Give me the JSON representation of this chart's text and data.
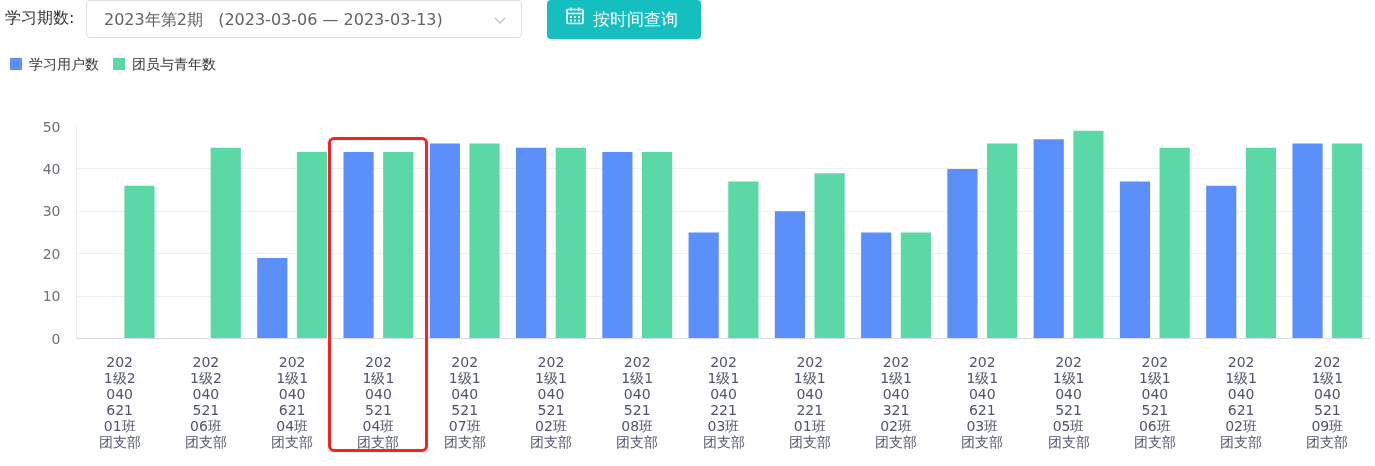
{
  "chart_data": {
    "type": "bar",
    "annotations": [
      "学习期数:",
      "2023年第2期   (2023-03-06 — 2023-03-13)",
      "按时间查询"
    ],
    "categories": [
      "2021级204062101班团支部",
      "2021级204052106班团支部",
      "2021级104062104班团支部",
      "2021级104052104班团支部",
      "2021级104052107班团支部",
      "2021级104052102班团支部",
      "2021级104052108班团支部",
      "2021级104022103班团支部",
      "2021级104022101班团支部",
      "2021级104032102班团支部",
      "2021级104062103班团支部",
      "2021级104052105班团支部",
      "2021级104052106班团支部",
      "2021级104062102班团支部",
      "2021级104052109班团支部"
    ],
    "series": [
      {
        "name": "学习用户数",
        "color": "#5b8ff9",
        "values": [
          null,
          null,
          19,
          44,
          46,
          45,
          44,
          25,
          30,
          25,
          40,
          47,
          37,
          36,
          46
        ]
      },
      {
        "name": "团员与青年数",
        "color": "#5ad8a6",
        "values": [
          36,
          45,
          44,
          44,
          46,
          45,
          44,
          37,
          39,
          25,
          46,
          49,
          45,
          45,
          46
        ]
      }
    ],
    "ylim": [
      0,
      50
    ],
    "yticks": [
      0,
      10,
      20,
      30,
      40,
      50
    ],
    "grid": "y",
    "legend": "top left"
  }
}
